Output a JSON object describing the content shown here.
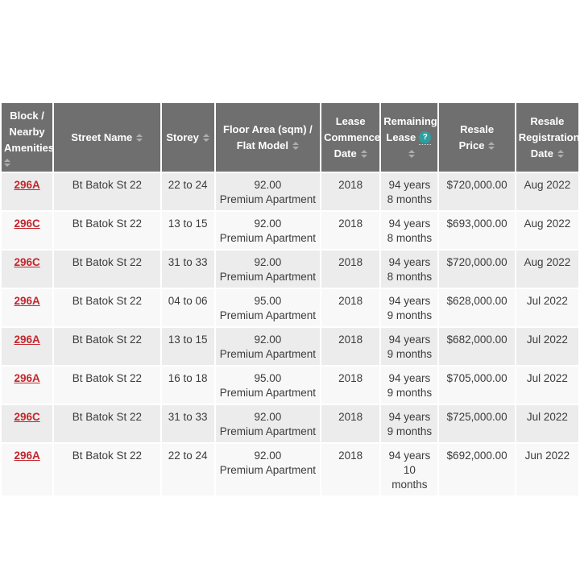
{
  "colors": {
    "header_bg": "#6F6F6F",
    "header_text": "#FFFFFF",
    "row_odd": "#ECECEC",
    "row_even": "#F8F8F8",
    "link_red": "#C1272D",
    "help_teal": "#2B9FA2",
    "body_text": "#3C3C3C"
  },
  "table": {
    "columns": [
      {
        "id": "block",
        "label": "Block /\nNearby\nAmenities",
        "sortable": true
      },
      {
        "id": "street-name",
        "label": "Street Name",
        "sortable": true
      },
      {
        "id": "storey",
        "label": "Storey",
        "sortable": true
      },
      {
        "id": "floor-area",
        "label": "Floor Area (sqm) /\nFlat Model",
        "sortable": true
      },
      {
        "id": "lease-commence",
        "label": "Lease\nCommence\nDate",
        "sortable": true
      },
      {
        "id": "remaining-lease",
        "label": "Remaining\nLease",
        "sortable": true,
        "help_label": "?"
      },
      {
        "id": "resale-price",
        "label": "Resale\nPrice",
        "sortable": true
      },
      {
        "id": "resale-reg-date",
        "label": "Resale\nRegistration\nDate",
        "sortable": true
      }
    ],
    "rows": [
      [
        "296A",
        "Bt Batok St 22",
        "22 to 24",
        "92.00\nPremium Apartment",
        "2018",
        "94 years\n8 months",
        "$720,000.00",
        "Aug 2022"
      ],
      [
        "296C",
        "Bt Batok St 22",
        "13 to 15",
        "92.00\nPremium Apartment",
        "2018",
        "94 years\n8 months",
        "$693,000.00",
        "Aug 2022"
      ],
      [
        "296C",
        "Bt Batok St 22",
        "31 to 33",
        "92.00\nPremium Apartment",
        "2018",
        "94 years\n8 months",
        "$720,000.00",
        "Aug 2022"
      ],
      [
        "296A",
        "Bt Batok St 22",
        "04 to 06",
        "95.00\nPremium Apartment",
        "2018",
        "94 years\n9 months",
        "$628,000.00",
        "Jul 2022"
      ],
      [
        "296A",
        "Bt Batok St 22",
        "13 to 15",
        "92.00\nPremium Apartment",
        "2018",
        "94 years\n9 months",
        "$682,000.00",
        "Jul 2022"
      ],
      [
        "296A",
        "Bt Batok St 22",
        "16 to 18",
        "95.00\nPremium Apartment",
        "2018",
        "94 years\n9 months",
        "$705,000.00",
        "Jul 2022"
      ],
      [
        "296C",
        "Bt Batok St 22",
        "31 to 33",
        "92.00\nPremium Apartment",
        "2018",
        "94 years\n9 months",
        "$725,000.00",
        "Jul 2022"
      ],
      [
        "296A",
        "Bt Batok St 22",
        "22 to 24",
        "92.00\nPremium Apartment",
        "2018",
        "94 years\n10 months",
        "$692,000.00",
        "Jun 2022"
      ]
    ]
  }
}
